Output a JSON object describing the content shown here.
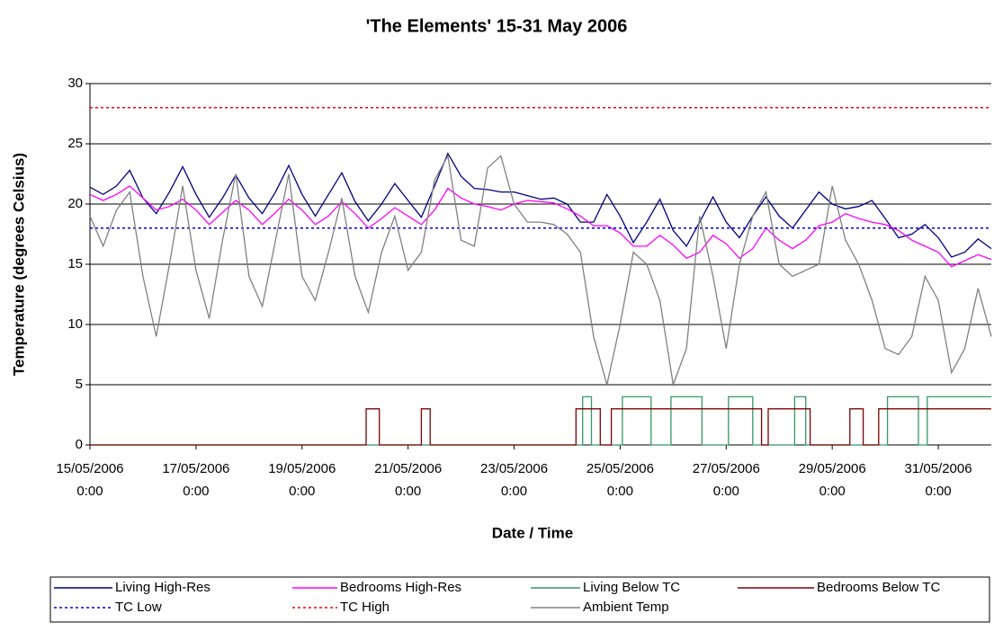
{
  "chart_data": {
    "type": "line",
    "title": "'The Elements' 15-31 May 2006",
    "xlabel": "Date / Time",
    "ylabel": "Temperature (degrees Celsius)",
    "xlim": [
      "15/05/2006 0:00",
      "01/06/2006 0:00"
    ],
    "xticks": [
      "15/05/2006 0:00",
      "17/05/2006 0:00",
      "19/05/2006 0:00",
      "21/05/2006 0:00",
      "23/05/2006 0:00",
      "25/05/2006 0:00",
      "27/05/2006 0:00",
      "29/05/2006 0:00",
      "31/05/2006 0:00"
    ],
    "ylim": [
      0,
      30
    ],
    "yticks": [
      0,
      5,
      10,
      15,
      20,
      25,
      30
    ],
    "grid": true,
    "legend": "bottom",
    "x": [
      "15/05/2006 0:00",
      "15/05/2006 6:00",
      "15/05/2006 12:00",
      "15/05/2006 18:00",
      "16/05/2006 0:00",
      "16/05/2006 6:00",
      "16/05/2006 12:00",
      "16/05/2006 18:00",
      "17/05/2006 0:00",
      "17/05/2006 6:00",
      "17/05/2006 12:00",
      "17/05/2006 18:00",
      "18/05/2006 0:00",
      "18/05/2006 6:00",
      "18/05/2006 12:00",
      "18/05/2006 18:00",
      "19/05/2006 0:00",
      "19/05/2006 6:00",
      "19/05/2006 12:00",
      "19/05/2006 18:00",
      "20/05/2006 0:00",
      "20/05/2006 6:00",
      "20/05/2006 12:00",
      "20/05/2006 18:00",
      "21/05/2006 0:00",
      "21/05/2006 6:00",
      "21/05/2006 12:00",
      "21/05/2006 18:00",
      "22/05/2006 0:00",
      "22/05/2006 6:00",
      "22/05/2006 12:00",
      "22/05/2006 18:00",
      "23/05/2006 0:00",
      "23/05/2006 6:00",
      "23/05/2006 12:00",
      "23/05/2006 18:00",
      "24/05/2006 0:00",
      "24/05/2006 6:00",
      "24/05/2006 12:00",
      "24/05/2006 18:00",
      "25/05/2006 0:00",
      "25/05/2006 6:00",
      "25/05/2006 12:00",
      "25/05/2006 18:00",
      "26/05/2006 0:00",
      "26/05/2006 6:00",
      "26/05/2006 12:00",
      "26/05/2006 18:00",
      "27/05/2006 0:00",
      "27/05/2006 6:00",
      "27/05/2006 12:00",
      "27/05/2006 18:00",
      "28/05/2006 0:00",
      "28/05/2006 6:00",
      "28/05/2006 12:00",
      "28/05/2006 18:00",
      "29/05/2006 0:00",
      "29/05/2006 6:00",
      "29/05/2006 12:00",
      "29/05/2006 18:00",
      "30/05/2006 0:00",
      "30/05/2006 6:00",
      "30/05/2006 12:00",
      "30/05/2006 18:00",
      "31/05/2006 0:00",
      "31/05/2006 6:00",
      "31/05/2006 12:00",
      "31/05/2006 18:00",
      "01/06/2006 0:00"
    ],
    "series": [
      {
        "name": "Living High-Res",
        "color": "#000080",
        "values": [
          21.4,
          20.8,
          21.5,
          22.8,
          20.5,
          19.2,
          21,
          23.1,
          20.8,
          18.9,
          20.5,
          22.4,
          20.5,
          19.2,
          21,
          23.2,
          20.8,
          19,
          20.8,
          22.6,
          20.2,
          18.6,
          20,
          21.7,
          20.3,
          18.9,
          21.5,
          24.2,
          22.3,
          21.3,
          21.2,
          21.0,
          21,
          20.7,
          20.4,
          20.5,
          20,
          18.5,
          18.5,
          20.8,
          19,
          16.8,
          18.5,
          20.4,
          17.8,
          16.5,
          18.5,
          20.6,
          18.5,
          17.2,
          19,
          20.6,
          19,
          18,
          19.5,
          21,
          20,
          19.6,
          19.8,
          20.3,
          18.8,
          17.2,
          17.5,
          18.3,
          17.2,
          15.6,
          16,
          17.1,
          16.3
        ]
      },
      {
        "name": "Bedrooms High-Res",
        "color": "#ff00ff",
        "values": [
          20.8,
          20.3,
          20.8,
          21.5,
          20.5,
          19.5,
          19.8,
          20.4,
          19.5,
          18.3,
          19.3,
          20.3,
          19.5,
          18.3,
          19.3,
          20.4,
          19.5,
          18.3,
          19,
          20.2,
          19.2,
          18,
          18.8,
          19.7,
          19,
          18.3,
          19.5,
          21.3,
          20.5,
          20,
          19.8,
          19.5,
          20,
          20.3,
          20.2,
          20.1,
          19.6,
          19,
          18.2,
          18.2,
          17.6,
          16.5,
          16.5,
          17.4,
          16.6,
          15.5,
          16,
          17.4,
          16.7,
          15.5,
          16.3,
          18.0,
          17,
          16.3,
          17,
          18.2,
          18.5,
          19.2,
          18.8,
          18.5,
          18.3,
          17.8,
          17,
          16.5,
          16.0,
          14.8,
          15.3,
          15.8,
          15.4
        ]
      },
      {
        "name": "Living Below TC",
        "color": "#339966",
        "x": [
          "15/05/2006 0:00",
          "24/05/2006 7:00",
          "24/05/2006 7:00",
          "24/05/2006 11:00",
          "24/05/2006 11:00",
          "25/05/2006 1:00",
          "25/05/2006 1:00",
          "25/05/2006 14:00",
          "25/05/2006 14:00",
          "25/05/2006 23:00",
          "25/05/2006 23:00",
          "26/05/2006 13:00",
          "26/05/2006 13:00",
          "27/05/2006 1:00",
          "27/05/2006 1:00",
          "27/05/2006 12:00",
          "27/05/2006 12:00",
          "28/05/2006 7:00",
          "28/05/2006 7:00",
          "28/05/2006 12:00",
          "28/05/2006 12:00",
          "30/05/2006 1:00",
          "30/05/2006 1:00",
          "30/05/2006 15:00",
          "30/05/2006 15:00",
          "30/05/2006 19:00",
          "30/05/2006 19:00",
          "01/06/2006 0:00"
        ],
        "values": [
          0,
          0,
          4,
          4,
          0,
          0,
          4,
          4,
          0,
          0,
          4,
          4,
          0,
          0,
          4,
          4,
          0,
          0,
          4,
          4,
          0,
          0,
          4,
          4,
          0,
          0,
          4,
          4
        ]
      },
      {
        "name": "Bedrooms Below TC",
        "color": "#800000",
        "x": [
          "15/05/2006 0:00",
          "20/05/2006 5:00",
          "20/05/2006 5:00",
          "20/05/2006 11:00",
          "20/05/2006 11:00",
          "21/05/2006 6:00",
          "21/05/2006 6:00",
          "21/05/2006 10:00",
          "21/05/2006 10:00",
          "24/05/2006 4:00",
          "24/05/2006 4:00",
          "24/05/2006 15:00",
          "24/05/2006 15:00",
          "24/05/2006 20:00",
          "24/05/2006 20:00",
          "27/05/2006 16:00",
          "27/05/2006 16:00",
          "27/05/2006 19:00",
          "27/05/2006 19:00",
          "28/05/2006 14:00",
          "28/05/2006 14:00",
          "29/05/2006 8:00",
          "29/05/2006 8:00",
          "29/05/2006 14:00",
          "29/05/2006 14:00",
          "29/05/2006 21:00",
          "29/05/2006 21:00",
          "01/06/2006 0:00"
        ],
        "values": [
          0,
          0,
          3,
          3,
          0,
          0,
          3,
          3,
          0,
          0,
          3,
          3,
          0,
          0,
          3,
          3,
          0,
          0,
          3,
          3,
          0,
          0,
          3,
          3,
          0,
          0,
          3,
          3
        ]
      },
      {
        "name": "TC Low",
        "color": "#0000cc",
        "dash": true,
        "x": [
          "15/05/2006 0:00",
          "01/06/2006 0:00"
        ],
        "values": [
          18,
          18
        ]
      },
      {
        "name": "TC High",
        "color": "#ff0000",
        "dash": true,
        "x": [
          "15/05/2006 0:00",
          "01/06/2006 0:00"
        ],
        "values": [
          28,
          28
        ]
      },
      {
        "name": "Ambient Temp",
        "color": "#808080",
        "values": [
          19,
          16.5,
          19.5,
          21,
          14,
          9,
          15,
          21.5,
          14.5,
          10.5,
          17,
          22.5,
          14,
          11.5,
          17,
          22.5,
          14,
          12,
          16,
          20.5,
          14,
          11,
          16,
          19,
          14.5,
          16,
          22,
          24,
          17,
          16.5,
          23,
          24,
          20,
          18.5,
          18.5,
          18.3,
          17.5,
          16,
          9,
          5,
          10,
          16,
          15,
          12,
          5,
          8,
          19,
          14,
          8,
          15,
          19,
          21,
          15,
          14,
          14.5,
          15,
          21.5,
          17,
          15,
          12,
          8,
          7.5,
          9,
          14,
          12,
          6,
          8,
          13,
          9
        ]
      }
    ]
  }
}
